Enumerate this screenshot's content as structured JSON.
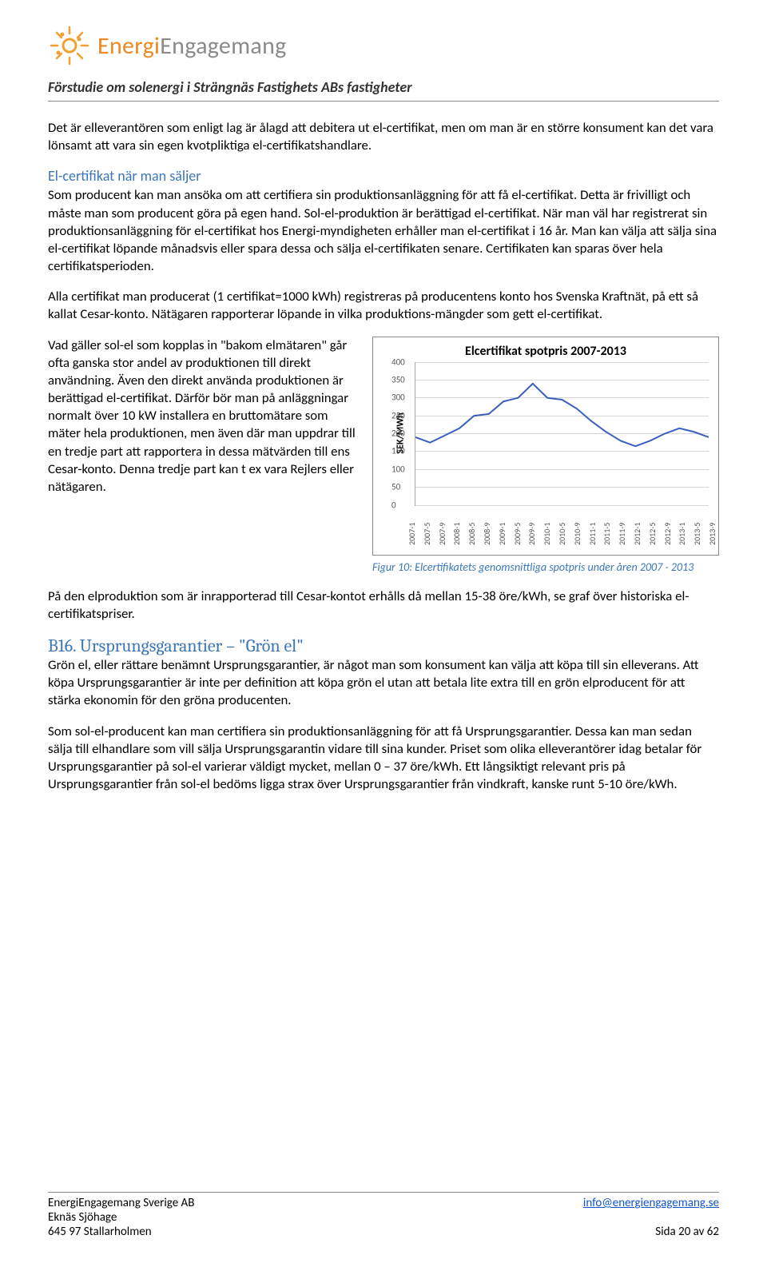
{
  "logo": {
    "brand_orange": "Energi",
    "brand_grey": "Engagemang"
  },
  "doc": {
    "title": "Förstudie om solenergi i Strängnäs Fastighets ABs fastigheter"
  },
  "p1": "Det är elleverantören som enligt lag är ålagd att debitera ut el-certifikat, men om man är en större konsument kan det vara lönsamt att vara sin egen kvotpliktiga el-certifikatshandlare.",
  "sub1": "El-certifikat när man säljer",
  "p2": "Som producent kan man ansöka om att certifiera sin produktionsanläggning för att få el-certifikat. Detta är frivilligt och måste man som producent göra på egen hand. Sol-el-produktion är berättigad el-certifikat. När man väl har registrerat sin produktionsanläggning för el-certifikat hos Energi-myndigheten erhåller man el-certifikat i 16 år. Man kan välja att sälja sina el-certifikat löpande månadsvis eller spara dessa och sälja el-certifikaten senare. Certifikaten kan sparas över hela certifikatsperioden.",
  "p3": "Alla certifikat man producerat (1 certifikat=1000 kWh) registreras på producentens konto hos Svenska Kraftnät, på ett så kallat Cesar-konto. Nätägaren rapporterar löpande in vilka produktions-mängder som gett el-certifikat.",
  "p4": "Vad gäller sol-el som kopplas in \"bakom elmätaren\" går ofta ganska stor andel av produktionen till direkt användning. Även den direkt använda produktionen är berättigad el-certifikat. Därför bör man på anläggningar normalt över 10 kW installera en bruttomätare som mäter hela produktionen, men även där man uppdrar till en tredje part att rapportera in dessa mätvärden till ens Cesar-konto. Denna tredje part kan t ex vara Rejlers eller nätägaren.",
  "p5": "På den elproduktion som är inrapporterad till Cesar-kontot erhålls då mellan 15-38 öre/kWh, se graf över historiska el-certifikatspriser.",
  "heading_b16": "B16. Ursprungsgarantier – \"Grön el\"",
  "p6": "Grön el, eller rättare benämnt Ursprungsgarantier, är något man som konsument kan välja att köpa till sin elleverans. Att köpa Ursprungsgarantier är inte per definition att köpa grön el utan att betala lite extra till en grön elproducent för att stärka ekonomin för den gröna producenten.",
  "p7": "Som sol-el-producent kan man certifiera sin produktionsanläggning för att få Ursprungsgarantier. Dessa kan man sedan sälja till elhandlare som vill sälja Ursprungsgarantin vidare till sina kunder. Priset som olika elleverantörer idag betalar för Ursprungsgarantier på sol-el varierar väldigt mycket, mellan 0 – 37 öre/kWh. Ett långsiktigt relevant pris på Ursprungsgarantier från sol-el bedöms ligga strax över Ursprungsgarantier från vindkraft, kanske runt 5-10 öre/kWh.",
  "chart": {
    "type": "line",
    "title": "Elcertifikat spotpris 2007-2013",
    "y_label": "SEK/MWh",
    "line_color": "#3b5fbf",
    "grid_color": "#d8d8d8",
    "axis_color": "#aaaaaa",
    "background": "#ffffff",
    "ylim": [
      0,
      400
    ],
    "ytick_step": 50,
    "y_ticks": [
      0,
      50,
      100,
      150,
      200,
      250,
      300,
      350,
      400
    ],
    "x_labels": [
      "2007-1",
      "2007-5",
      "2007-9",
      "2008-1",
      "2008-5",
      "2008-9",
      "2009-1",
      "2009-5",
      "2009-9",
      "2010-1",
      "2010-5",
      "2010-9",
      "2011-1",
      "2011-5",
      "2011-9",
      "2012-1",
      "2012-5",
      "2012-9",
      "2013-1",
      "2013-5",
      "2013-9"
    ],
    "values": [
      190,
      175,
      195,
      215,
      250,
      255,
      290,
      300,
      340,
      300,
      295,
      270,
      235,
      205,
      180,
      165,
      180,
      200,
      215,
      205,
      190
    ],
    "line_width": 2,
    "tick_fontsize": 10,
    "title_fontsize": 16
  },
  "fig_caption": "Figur 10: Elcertifikatets genomsnittliga spotpris under åren 2007 - 2013",
  "footer": {
    "company": "EnergiEngagemang Sverige AB",
    "addr1": "Eknäs Sjöhage",
    "addr2": "645 97 Stallarholmen",
    "email": "info@energiengagemang.se",
    "page": "Sida 20 av 62"
  }
}
